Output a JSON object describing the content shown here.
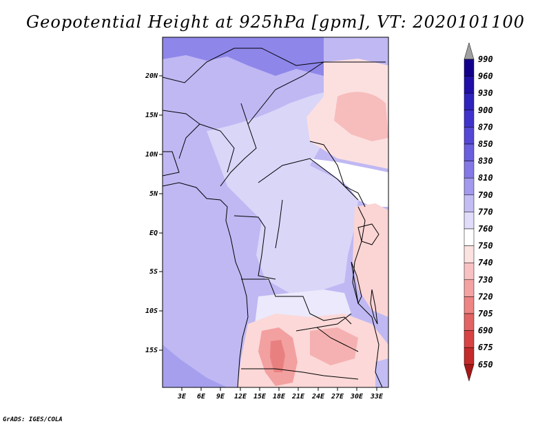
{
  "title": "Geopotential Height at 925hPa [gpm], VT: 2020101100",
  "footer": "GrADS: IGES/COLA",
  "map": {
    "lat_labels": [
      "20N",
      "15N",
      "10N",
      "5N",
      "EQ",
      "5S",
      "10S",
      "15S"
    ],
    "lon_labels": [
      "3E",
      "6E",
      "9E",
      "12E",
      "15E",
      "18E",
      "21E",
      "24E",
      "27E",
      "30E",
      "33E"
    ]
  },
  "colorbar": {
    "levels": [
      "990",
      "960",
      "930",
      "900",
      "870",
      "850",
      "830",
      "810",
      "790",
      "770",
      "760",
      "750",
      "740",
      "730",
      "720",
      "705",
      "690",
      "675",
      "650"
    ],
    "colors": [
      "#12008c",
      "#2010a8",
      "#2f23bd",
      "#4033cc",
      "#5548d6",
      "#6a5fdd",
      "#8478e6",
      "#a39aee",
      "#c3bdf4",
      "#e0dcfa",
      "#ffffff",
      "#fde2e2",
      "#f9c2c2",
      "#f4a3a3",
      "#ee8484",
      "#e36464",
      "#d84444",
      "#c52b2b",
      "#a51818"
    ],
    "top_color": "#a0a0a0",
    "bottom_color": "#a51818"
  }
}
